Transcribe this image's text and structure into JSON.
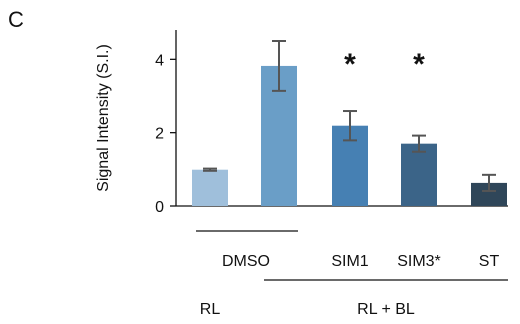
{
  "panel_label": "C",
  "chart_data": {
    "type": "bar",
    "ylabel": "Signal Intensity (S.I.)",
    "xlabel": "",
    "ylim": [
      0,
      4.8
    ],
    "yticks": [
      "0",
      "2",
      "4"
    ],
    "categories": [
      "",
      "",
      "SIM1",
      "SIM3*",
      "ST"
    ],
    "values": [
      0.99,
      3.82,
      2.19,
      1.7,
      0.63
    ],
    "errors": [
      0.03,
      0.68,
      0.4,
      0.22,
      0.22
    ],
    "significance": [
      "",
      "",
      "*",
      "*",
      ""
    ],
    "colors": [
      "#9fbfdb",
      "#6a9ec7",
      "#4680b3",
      "#3b6488",
      "#2f4659"
    ],
    "group_labels": {
      "dmso": "DMSO",
      "rl": "RL",
      "rl_bl": "RL + BL"
    },
    "grid": false,
    "legend": "none"
  }
}
